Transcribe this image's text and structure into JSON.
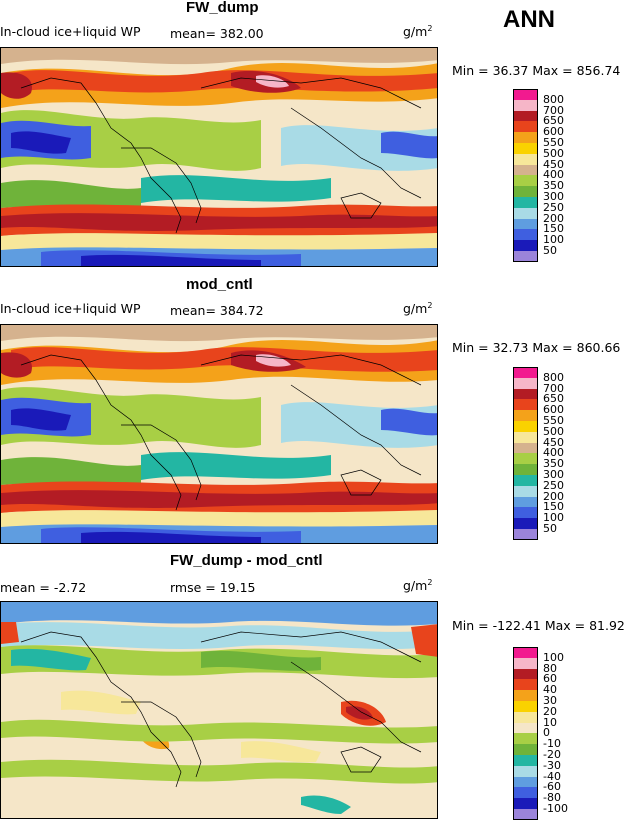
{
  "header": {
    "season": "ANN"
  },
  "panels": [
    {
      "title": "FW_dump",
      "left_text": "In-cloud ice+liquid WP",
      "center_text": "mean= 382.00",
      "units_base": "g/m",
      "units_exp": "2",
      "minmax": "Min =  36.37 Max = 856.74",
      "colorbar": {
        "ticks": [
          "800",
          "700",
          "650",
          "600",
          "550",
          "500",
          "450",
          "400",
          "350",
          "300",
          "250",
          "200",
          "150",
          "100",
          "50"
        ],
        "colors": [
          "#f21a8f",
          "#f6b6c8",
          "#b31c24",
          "#e8441c",
          "#f4a21a",
          "#fad200",
          "#f7e79a",
          "#d5b28e",
          "#a8cf45",
          "#6fb33a",
          "#23b6a3",
          "#a9dbe6",
          "#5f9de0",
          "#3f5fe0",
          "#1a1ab9",
          "#9b84da"
        ]
      },
      "chart_data": {
        "type": "heatmap",
        "title": "FW_dump",
        "variable": "In-cloud ice+liquid WP",
        "units": "g/m2",
        "mean": 382.0,
        "min": 36.37,
        "max": 856.74,
        "levels": [
          50,
          100,
          150,
          200,
          250,
          300,
          350,
          400,
          450,
          500,
          550,
          600,
          650,
          700,
          800
        ]
      }
    },
    {
      "title": "mod_cntl",
      "left_text": "In-cloud ice+liquid WP",
      "center_text": "mean= 384.72",
      "units_base": "g/m",
      "units_exp": "2",
      "minmax": "Min =  32.73 Max = 860.66",
      "colorbar": {
        "ticks": [
          "800",
          "700",
          "650",
          "600",
          "550",
          "500",
          "450",
          "400",
          "350",
          "300",
          "250",
          "200",
          "150",
          "100",
          "50"
        ],
        "colors": [
          "#f21a8f",
          "#f6b6c8",
          "#b31c24",
          "#e8441c",
          "#f4a21a",
          "#fad200",
          "#f7e79a",
          "#d5b28e",
          "#a8cf45",
          "#6fb33a",
          "#23b6a3",
          "#a9dbe6",
          "#5f9de0",
          "#3f5fe0",
          "#1a1ab9",
          "#9b84da"
        ]
      },
      "chart_data": {
        "type": "heatmap",
        "title": "mod_cntl",
        "variable": "In-cloud ice+liquid WP",
        "units": "g/m2",
        "mean": 384.72,
        "min": 32.73,
        "max": 860.66,
        "levels": [
          50,
          100,
          150,
          200,
          250,
          300,
          350,
          400,
          450,
          500,
          550,
          600,
          650,
          700,
          800
        ]
      }
    },
    {
      "title": "FW_dump - mod_cntl",
      "left_text": "mean =  -2.72",
      "center_text": "rmse =  19.15",
      "units_base": "g/m",
      "units_exp": "2",
      "minmax": "Min = -122.41 Max =  81.92",
      "colorbar": {
        "ticks": [
          "100",
          "80",
          "60",
          "40",
          "30",
          "20",
          "10",
          "0",
          "-10",
          "-20",
          "-30",
          "-40",
          "-60",
          "-80",
          "-100"
        ],
        "colors": [
          "#f21a8f",
          "#f6b6c8",
          "#b31c24",
          "#e8441c",
          "#f4a21a",
          "#fad200",
          "#f7e79a",
          "#f5e6c8",
          "#a8cf45",
          "#6fb33a",
          "#23b6a3",
          "#a9dbe6",
          "#5f9de0",
          "#3f5fe0",
          "#1a1ab9",
          "#9b84da"
        ]
      },
      "chart_data": {
        "type": "heatmap",
        "title": "FW_dump - mod_cntl",
        "units": "g/m2",
        "mean": -2.72,
        "rmse": 19.15,
        "min": -122.41,
        "max": 81.92,
        "levels": [
          -100,
          -80,
          -60,
          -40,
          -30,
          -20,
          -10,
          0,
          10,
          20,
          30,
          40,
          60,
          80,
          100
        ]
      }
    }
  ],
  "chart_data": [
    {
      "type": "heatmap",
      "title": "FW_dump",
      "mean": 382.0,
      "min": 36.37,
      "max": 856.74,
      "units": "g/m2"
    },
    {
      "type": "heatmap",
      "title": "mod_cntl",
      "mean": 384.72,
      "min": 32.73,
      "max": 860.66,
      "units": "g/m2"
    },
    {
      "type": "heatmap",
      "title": "FW_dump - mod_cntl",
      "mean": -2.72,
      "rmse": 19.15,
      "min": -122.41,
      "max": 81.92,
      "units": "g/m2"
    }
  ]
}
